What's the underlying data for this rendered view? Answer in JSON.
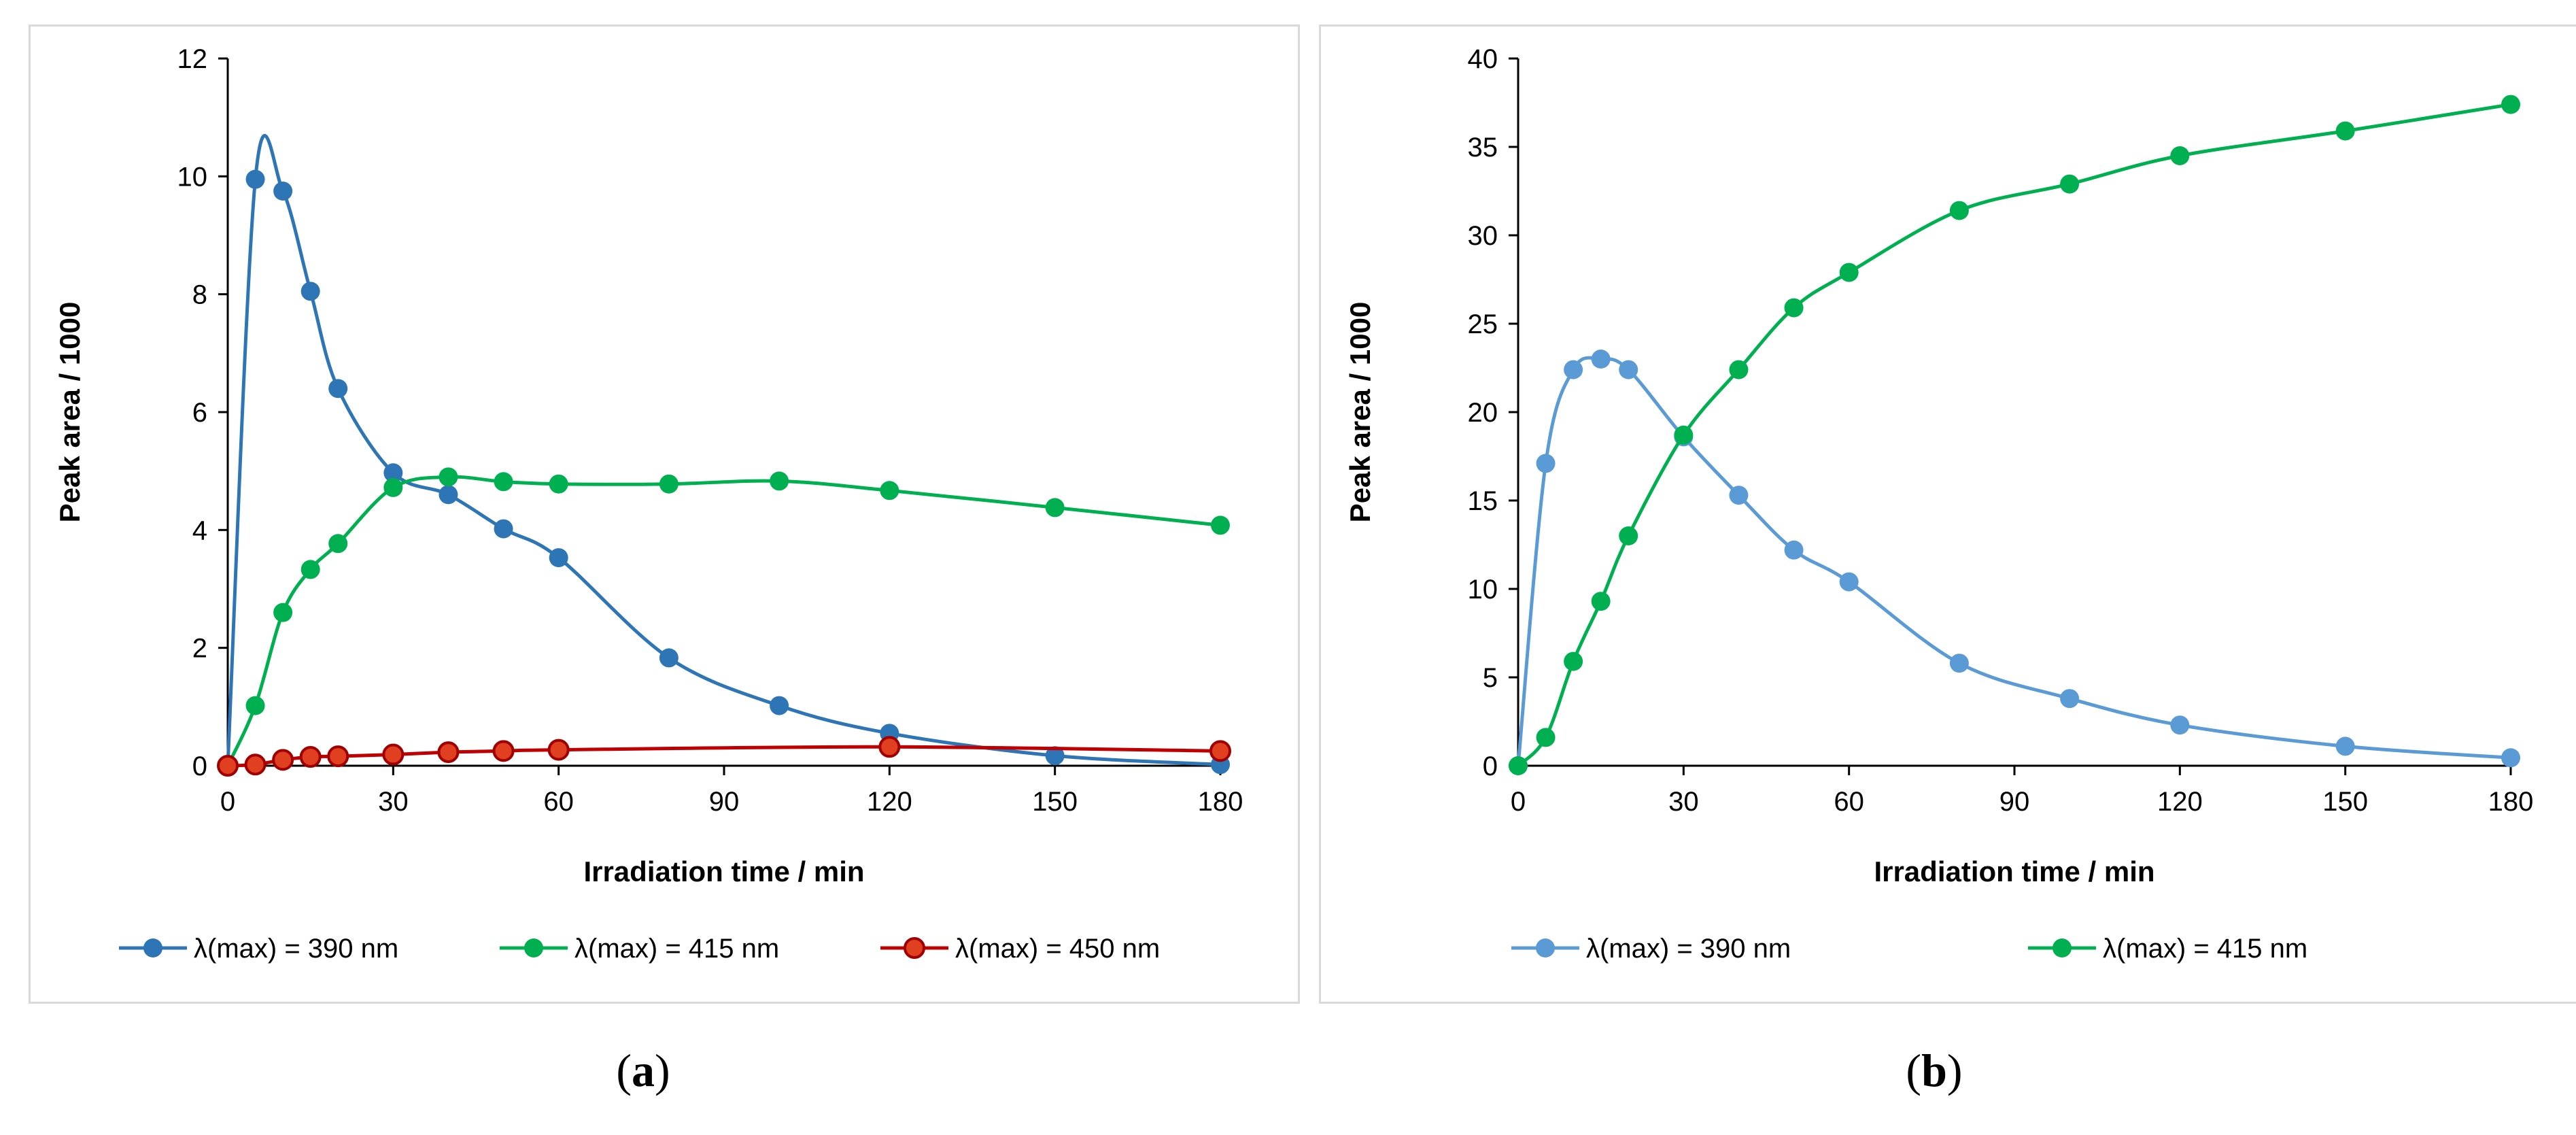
{
  "chart_data": [
    {
      "panel": "a",
      "type": "line",
      "xlabel": "Irradiation time / min",
      "ylabel": "Peak area / 1000",
      "xlim": [
        0,
        180
      ],
      "ylim": [
        0,
        12
      ],
      "xticks": [
        0,
        30,
        60,
        90,
        120,
        150,
        180
      ],
      "yticks": [
        0,
        2,
        4,
        6,
        8,
        10,
        12
      ],
      "grid": false,
      "legend_position": "bottom",
      "series": [
        {
          "name": "λ(max) = 390 nm",
          "color": "#2E75B6",
          "x": [
            0,
            5,
            10,
            15,
            20,
            30,
            40,
            50,
            60,
            80,
            100,
            120,
            150,
            180
          ],
          "y": [
            0,
            9.95,
            9.75,
            8.05,
            6.4,
            4.97,
            4.6,
            4.02,
            3.53,
            1.83,
            1.02,
            0.55,
            0.17,
            0.02
          ]
        },
        {
          "name": "λ(max) = 415 nm",
          "color": "#00B050",
          "x": [
            0,
            5,
            10,
            15,
            20,
            30,
            40,
            50,
            60,
            80,
            100,
            120,
            150,
            180
          ],
          "y": [
            0,
            1.02,
            2.6,
            3.33,
            3.77,
            4.72,
            4.9,
            4.82,
            4.78,
            4.78,
            4.83,
            4.67,
            4.38,
            4.08
          ]
        },
        {
          "name": "λ(max) = 450 nm",
          "color": "#C00000",
          "x": [
            0,
            5,
            10,
            15,
            20,
            30,
            40,
            50,
            60,
            120,
            180
          ],
          "y": [
            0,
            0.02,
            0.1,
            0.15,
            0.16,
            0.19,
            0.23,
            0.25,
            0.27,
            0.32,
            0.25
          ]
        }
      ]
    },
    {
      "panel": "b",
      "type": "line",
      "xlabel": "Irradiation time / min",
      "ylabel": "Peak area / 1000",
      "xlim": [
        0,
        180
      ],
      "ylim": [
        0,
        40
      ],
      "xticks": [
        0,
        30,
        60,
        90,
        120,
        150,
        180
      ],
      "yticks": [
        0,
        5,
        10,
        15,
        20,
        25,
        30,
        35,
        40
      ],
      "grid": false,
      "legend_position": "bottom",
      "series": [
        {
          "name": "λ(max) = 390 nm",
          "color": "#5B9BD5",
          "x": [
            0,
            5,
            10,
            15,
            20,
            30,
            40,
            50,
            60,
            80,
            100,
            120,
            150,
            180
          ],
          "y": [
            0,
            17.1,
            22.4,
            23.0,
            22.4,
            18.6,
            15.3,
            12.2,
            10.4,
            5.8,
            3.8,
            2.3,
            1.1,
            0.45
          ]
        },
        {
          "name": "λ(max) = 415 nm",
          "color": "#00B050",
          "x": [
            0,
            5,
            10,
            15,
            20,
            30,
            40,
            50,
            60,
            80,
            100,
            120,
            150,
            180
          ],
          "y": [
            0,
            1.6,
            5.9,
            9.3,
            13.0,
            18.7,
            22.4,
            25.9,
            27.9,
            31.4,
            32.9,
            34.5,
            35.9,
            37.4
          ]
        }
      ]
    }
  ],
  "panel_labels": [
    "(a)",
    "(b)"
  ]
}
